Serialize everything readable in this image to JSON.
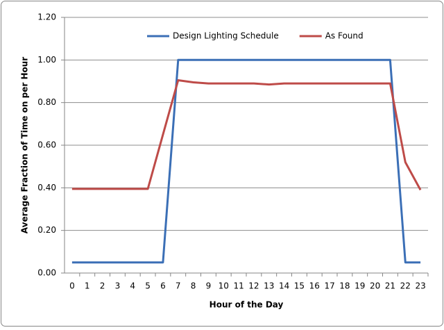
{
  "chart_data": {
    "type": "line",
    "x_label": "Hour of the Day",
    "y_label": "Average Fraction of Time on per Hour",
    "categories": [
      0,
      1,
      2,
      3,
      4,
      5,
      6,
      7,
      8,
      9,
      10,
      11,
      12,
      13,
      14,
      15,
      16,
      17,
      18,
      19,
      20,
      21,
      22,
      23
    ],
    "series": [
      {
        "name": "Design Lighting Schedule",
        "color": "#3b6fb6",
        "values": [
          0.05,
          0.05,
          0.05,
          0.05,
          0.05,
          0.05,
          0.05,
          1.0,
          1.0,
          1.0,
          1.0,
          1.0,
          1.0,
          1.0,
          1.0,
          1.0,
          1.0,
          1.0,
          1.0,
          1.0,
          1.0,
          1.0,
          0.05,
          0.05
        ]
      },
      {
        "name": "As Found",
        "color": "#be4b48",
        "values": [
          0.395,
          0.395,
          0.395,
          0.395,
          0.395,
          0.395,
          0.65,
          0.905,
          0.895,
          0.89,
          0.89,
          0.89,
          0.89,
          0.885,
          0.89,
          0.89,
          0.89,
          0.89,
          0.89,
          0.89,
          0.89,
          0.89,
          0.52,
          0.39
        ]
      }
    ],
    "ylim": [
      0,
      1.2
    ],
    "yticks": [
      {
        "value": 0,
        "label": "0.00"
      },
      {
        "value": 0.2,
        "label": "0.20"
      },
      {
        "value": 0.4,
        "label": "0.40"
      },
      {
        "value": 0.6,
        "label": "0.60"
      },
      {
        "value": 0.8,
        "label": "0.80"
      },
      {
        "value": 1.0,
        "label": "1.00"
      },
      {
        "value": 1.2,
        "label": "1.20"
      }
    ],
    "grid": true,
    "legend": "top"
  }
}
